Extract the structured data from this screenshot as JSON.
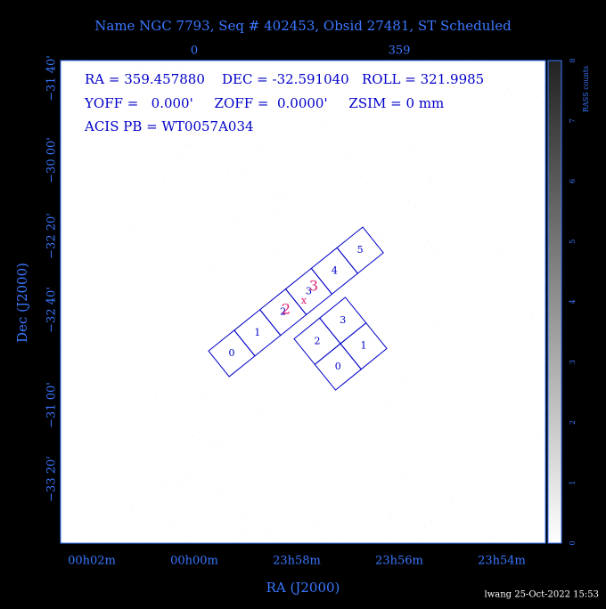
{
  "header": {
    "title": "Name NGC 7793, Seq # 402453, Obsid 27481, ST Scheduled"
  },
  "info": {
    "line1": "RA = 359.457880    DEC = -32.591040   ROLL = 321.9985",
    "line2": "YOFF =   0.000'     ZOFF =  0.0000'     ZSIM = 0 mm",
    "line3": "ACIS PB = WT0057A034"
  },
  "axes": {
    "x_label": "RA (J2000)",
    "y_label": "Dec (J2000)",
    "x_ticks": [
      "00h02m",
      "00h00m",
      "23h58m",
      "23h56m",
      "23h54m"
    ],
    "top_ticks": [
      "0",
      "359"
    ],
    "y_ticks": [
      "−31 40'",
      "−30 00'",
      "−32 20'",
      "−32 40'",
      "−31 00'",
      "−33 20'"
    ]
  },
  "colorbar": {
    "label": "RASS counts",
    "ticks": [
      "0",
      "1",
      "2",
      "3",
      "4",
      "5",
      "6",
      "7",
      "8"
    ]
  },
  "chips": {
    "acis_s": [
      "0",
      "1",
      "2",
      "3",
      "4",
      "5"
    ],
    "acis_i": [
      "2",
      "3",
      "0",
      "1"
    ],
    "overlay": [
      "2",
      "3",
      "x"
    ]
  },
  "footer": "lwang 25-Oct-2022 15:53"
}
